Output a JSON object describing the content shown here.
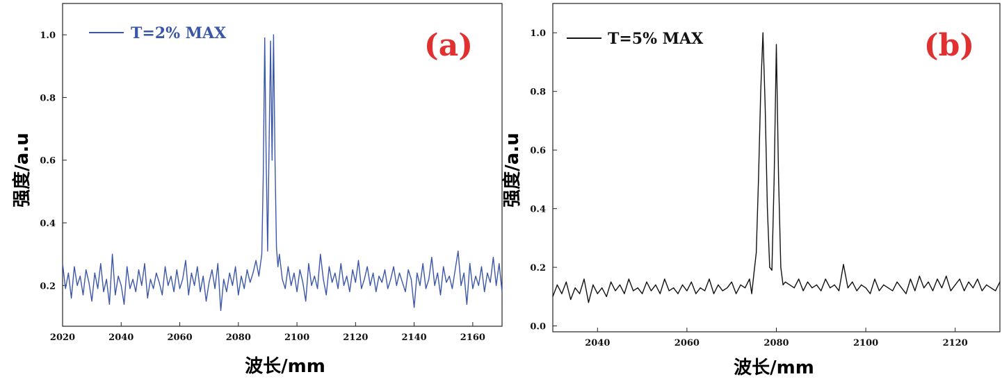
{
  "chart_data": [
    {
      "type": "line",
      "panel_label": "(a)",
      "xlabel": "波长/mm",
      "ylabel": "强度/a.u",
      "xlim": [
        2020,
        2170
      ],
      "ylim": [
        0.07,
        1.1
      ],
      "xticks": [
        2020,
        2040,
        2060,
        2080,
        2100,
        2120,
        2140,
        2160
      ],
      "yticks": [
        0.2,
        0.4,
        0.6,
        0.8,
        1.0
      ],
      "xtick_labels": [
        "2020",
        "2040",
        "2060",
        "2080",
        "2100",
        "2120",
        "2140",
        "2160"
      ],
      "ytick_labels": [
        "0.2",
        "0.4",
        "0.6",
        "0.8",
        "1.0"
      ],
      "legend_placement": "top-left",
      "grid": false,
      "series": [
        {
          "name": "T=2% MAX",
          "color": "#3a56a8",
          "x": [
            2020,
            2021,
            2022,
            2023,
            2024,
            2025,
            2026,
            2027,
            2028,
            2029,
            2030,
            2031,
            2032,
            2033,
            2034,
            2035,
            2036,
            2037,
            2038,
            2039,
            2040,
            2041,
            2042,
            2043,
            2044,
            2045,
            2046,
            2047,
            2048,
            2049,
            2050,
            2051,
            2052,
            2053,
            2054,
            2055,
            2056,
            2057,
            2058,
            2059,
            2060,
            2061,
            2062,
            2063,
            2064,
            2065,
            2066,
            2067,
            2068,
            2069,
            2070,
            2071,
            2072,
            2073,
            2074,
            2075,
            2076,
            2077,
            2078,
            2079,
            2080,
            2081,
            2082,
            2083,
            2084,
            2085,
            2086,
            2087,
            2088,
            2088.5,
            2089,
            2089.5,
            2090,
            2090.5,
            2091,
            2091.5,
            2092,
            2092.5,
            2093,
            2093.5,
            2094,
            2095,
            2096,
            2097,
            2098,
            2099,
            2100,
            2101,
            2102,
            2103,
            2104,
            2105,
            2106,
            2107,
            2108,
            2109,
            2110,
            2111,
            2112,
            2113,
            2114,
            2115,
            2116,
            2117,
            2118,
            2119,
            2120,
            2121,
            2122,
            2123,
            2124,
            2125,
            2126,
            2127,
            2128,
            2129,
            2130,
            2131,
            2132,
            2133,
            2134,
            2135,
            2136,
            2137,
            2138,
            2139,
            2140,
            2141,
            2142,
            2143,
            2144,
            2145,
            2146,
            2147,
            2148,
            2149,
            2150,
            2151,
            2152,
            2153,
            2154,
            2155,
            2156,
            2157,
            2158,
            2159,
            2160,
            2161,
            2162,
            2163,
            2164,
            2165,
            2166,
            2167,
            2168,
            2169,
            2170
          ],
          "values": [
            0.27,
            0.19,
            0.24,
            0.16,
            0.26,
            0.2,
            0.23,
            0.17,
            0.25,
            0.21,
            0.15,
            0.24,
            0.19,
            0.27,
            0.18,
            0.22,
            0.14,
            0.3,
            0.17,
            0.23,
            0.2,
            0.14,
            0.26,
            0.19,
            0.22,
            0.18,
            0.25,
            0.2,
            0.27,
            0.16,
            0.22,
            0.19,
            0.24,
            0.21,
            0.17,
            0.26,
            0.2,
            0.23,
            0.18,
            0.25,
            0.19,
            0.22,
            0.28,
            0.17,
            0.24,
            0.2,
            0.26,
            0.18,
            0.23,
            0.15,
            0.21,
            0.25,
            0.19,
            0.27,
            0.12,
            0.22,
            0.18,
            0.24,
            0.2,
            0.26,
            0.17,
            0.23,
            0.19,
            0.25,
            0.21,
            0.24,
            0.28,
            0.23,
            0.3,
            0.55,
            0.99,
            0.6,
            0.31,
            0.65,
            0.98,
            0.6,
            1.0,
            0.6,
            0.32,
            0.26,
            0.3,
            0.22,
            0.19,
            0.26,
            0.2,
            0.24,
            0.18,
            0.25,
            0.21,
            0.15,
            0.27,
            0.2,
            0.23,
            0.19,
            0.3,
            0.22,
            0.17,
            0.26,
            0.21,
            0.24,
            0.19,
            0.27,
            0.2,
            0.23,
            0.18,
            0.25,
            0.21,
            0.28,
            0.19,
            0.22,
            0.26,
            0.2,
            0.24,
            0.18,
            0.23,
            0.21,
            0.25,
            0.19,
            0.22,
            0.26,
            0.2,
            0.24,
            0.21,
            0.18,
            0.25,
            0.22,
            0.13,
            0.24,
            0.2,
            0.27,
            0.19,
            0.22,
            0.29,
            0.2,
            0.24,
            0.17,
            0.26,
            0.21,
            0.23,
            0.19,
            0.25,
            0.31,
            0.2,
            0.24,
            0.14,
            0.27,
            0.19,
            0.23,
            0.2,
            0.26,
            0.18,
            0.24,
            0.21,
            0.29,
            0.2,
            0.27,
            0.18
          ]
        }
      ]
    },
    {
      "type": "line",
      "panel_label": "(b)",
      "xlabel": "波长/mm",
      "ylabel": "强度/a.u",
      "xlim": [
        2030,
        2130
      ],
      "ylim": [
        -0.02,
        1.1
      ],
      "xticks": [
        2040,
        2060,
        2080,
        2100,
        2120
      ],
      "yticks": [
        0.0,
        0.2,
        0.4,
        0.6,
        0.8,
        1.0
      ],
      "xtick_labels": [
        "2040",
        "2060",
        "2080",
        "2100",
        "2120"
      ],
      "ytick_labels": [
        "0.0",
        "0.2",
        "0.4",
        "0.6",
        "0.8",
        "1.0"
      ],
      "legend_placement": "top-left",
      "grid": false,
      "series": [
        {
          "name": "T=5% MAX",
          "color": "#111111",
          "x": [
            2030,
            2031,
            2032,
            2033,
            2034,
            2035,
            2036,
            2037,
            2038,
            2039,
            2040,
            2041,
            2042,
            2043,
            2044,
            2045,
            2046,
            2047,
            2048,
            2049,
            2050,
            2051,
            2052,
            2053,
            2054,
            2055,
            2056,
            2057,
            2058,
            2059,
            2060,
            2061,
            2062,
            2063,
            2064,
            2065,
            2066,
            2067,
            2068,
            2069,
            2070,
            2071,
            2072,
            2073,
            2074,
            2074.5,
            2075,
            2075.5,
            2076,
            2076.5,
            2077,
            2077.5,
            2078,
            2078.5,
            2079,
            2079.5,
            2080,
            2080.5,
            2081,
            2081.5,
            2082,
            2083,
            2084,
            2085,
            2086,
            2087,
            2088,
            2089,
            2090,
            2091,
            2092,
            2093,
            2094,
            2095,
            2096,
            2097,
            2098,
            2099,
            2100,
            2101,
            2102,
            2103,
            2104,
            2105,
            2106,
            2107,
            2108,
            2109,
            2110,
            2111,
            2112,
            2113,
            2114,
            2115,
            2116,
            2117,
            2118,
            2119,
            2120,
            2121,
            2122,
            2123,
            2124,
            2125,
            2126,
            2127,
            2128,
            2129,
            2130
          ],
          "values": [
            0.1,
            0.14,
            0.11,
            0.15,
            0.09,
            0.13,
            0.11,
            0.16,
            0.08,
            0.14,
            0.11,
            0.13,
            0.1,
            0.15,
            0.12,
            0.14,
            0.11,
            0.16,
            0.12,
            0.13,
            0.11,
            0.15,
            0.12,
            0.14,
            0.11,
            0.16,
            0.12,
            0.13,
            0.11,
            0.14,
            0.12,
            0.15,
            0.11,
            0.13,
            0.12,
            0.16,
            0.11,
            0.14,
            0.12,
            0.13,
            0.15,
            0.11,
            0.14,
            0.13,
            0.16,
            0.11,
            0.18,
            0.25,
            0.5,
            0.8,
            1.0,
            0.75,
            0.4,
            0.2,
            0.19,
            0.5,
            0.96,
            0.5,
            0.2,
            0.14,
            0.15,
            0.14,
            0.13,
            0.16,
            0.12,
            0.15,
            0.13,
            0.14,
            0.12,
            0.16,
            0.13,
            0.14,
            0.12,
            0.21,
            0.13,
            0.15,
            0.12,
            0.14,
            0.13,
            0.11,
            0.16,
            0.12,
            0.14,
            0.13,
            0.12,
            0.15,
            0.13,
            0.11,
            0.16,
            0.12,
            0.17,
            0.13,
            0.15,
            0.12,
            0.16,
            0.13,
            0.17,
            0.12,
            0.14,
            0.16,
            0.12,
            0.15,
            0.13,
            0.16,
            0.12,
            0.14,
            0.13,
            0.12,
            0.15
          ]
        }
      ]
    }
  ]
}
